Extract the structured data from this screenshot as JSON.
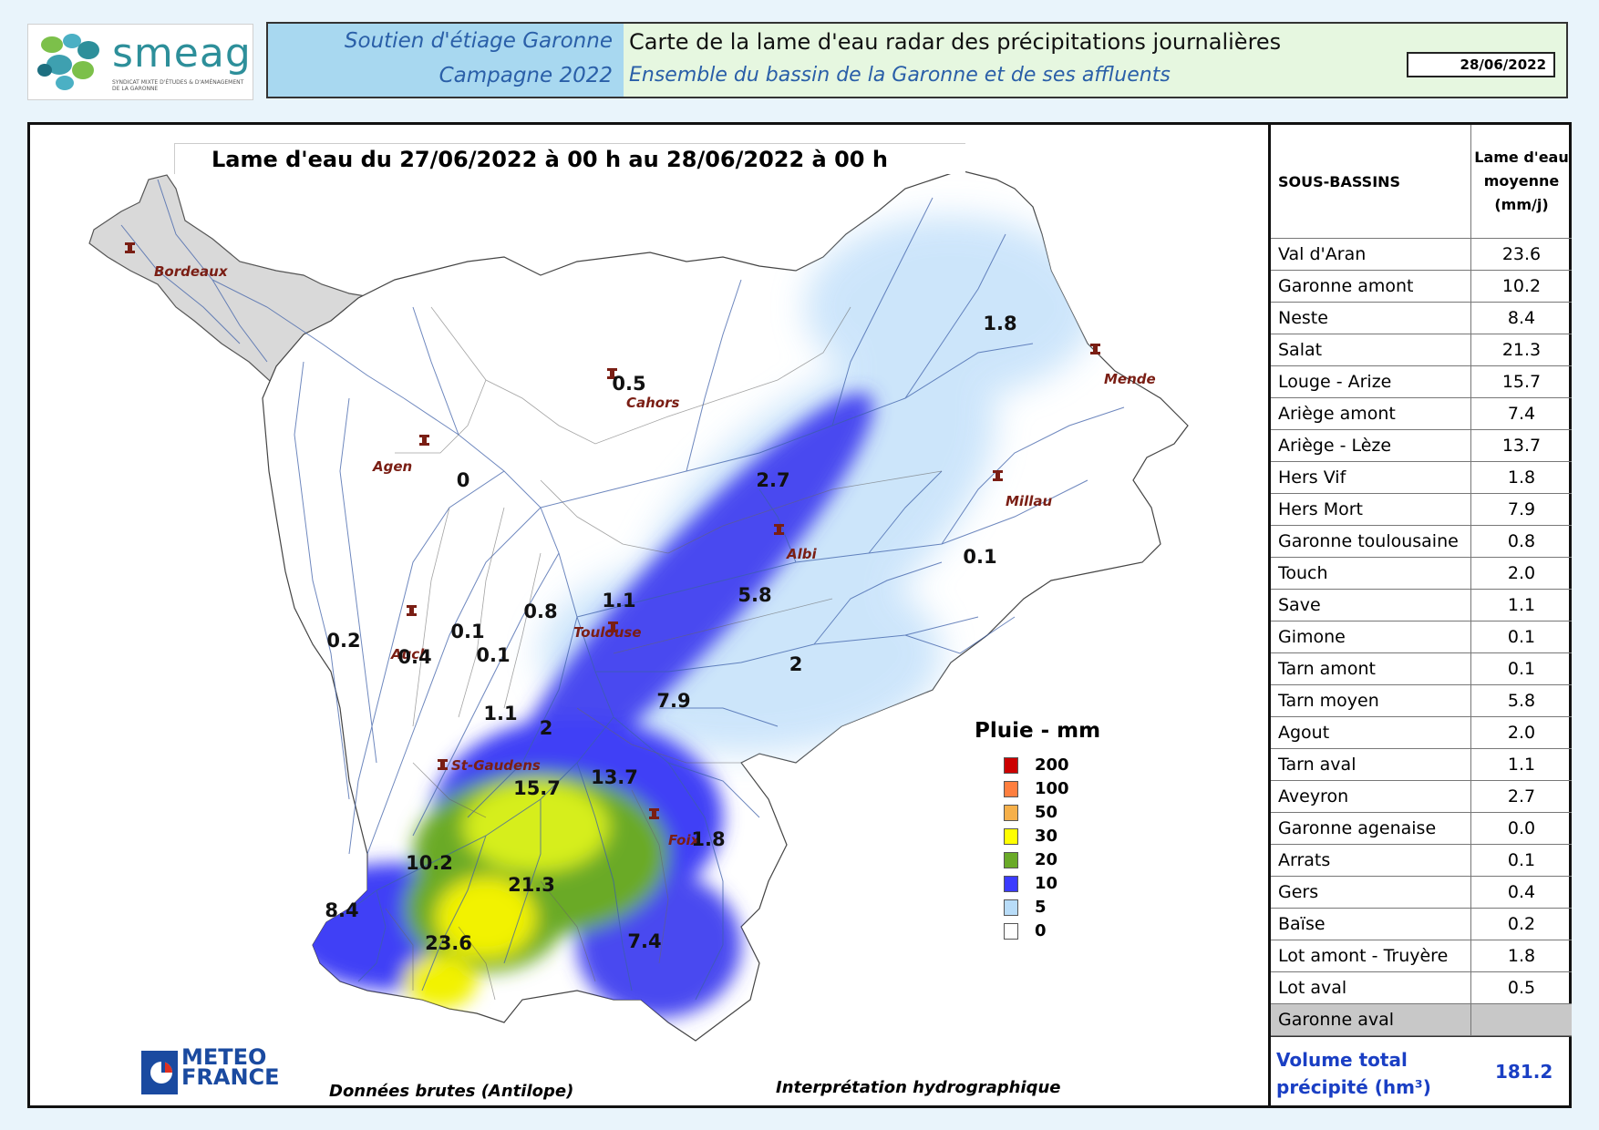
{
  "header": {
    "logo_word": "smeag",
    "logo_sub": "SYNDICAT MIXTE D'ÉTUDES & D'AMÉNAGEMENT DE LA GARONNE",
    "left_line1": "Soutien d'étiage Garonne",
    "left_line2": "Campagne 2022",
    "right_line1": "Carte de la lame d'eau radar des précipitations journalières",
    "right_line2": "Ensemble du bassin de la Garonne et de ses affluents",
    "date": "28/06/2022"
  },
  "map": {
    "title": "Lame d'eau du 27/06/2022 à 00 h au 28/06/2022 à 00 h",
    "cities": [
      {
        "name": "Bordeaux"
      },
      {
        "name": "Cahors"
      },
      {
        "name": "Mende"
      },
      {
        "name": "Agen"
      },
      {
        "name": "Millau"
      },
      {
        "name": "Albi"
      },
      {
        "name": "Toulouse"
      },
      {
        "name": "Auch"
      },
      {
        "name": "St-Gaudens"
      },
      {
        "name": "Foix"
      }
    ],
    "values": [
      "1.8",
      "0.5",
      "2.7",
      "0",
      "0.1",
      "5.8",
      "1.1",
      "0.8",
      "0.1",
      "0.2",
      "0.4",
      "0.1",
      "2",
      "7.9",
      "1.1",
      "2",
      "13.7",
      "15.7",
      "1.8",
      "10.2",
      "21.3",
      "8.4",
      "23.6",
      "7.4"
    ]
  },
  "legend": {
    "title": "Pluie - mm",
    "items": [
      {
        "label": "200",
        "color": "#cc0000"
      },
      {
        "label": "100",
        "color": "#ff7f3f"
      },
      {
        "label": "50",
        "color": "#f6b04a"
      },
      {
        "label": "30",
        "color": "#ffff00"
      },
      {
        "label": "20",
        "color": "#6aaa28"
      },
      {
        "label": "10",
        "color": "#3b3bff"
      },
      {
        "label": "5",
        "color": "#b8dcf8"
      },
      {
        "label": "0",
        "color": "#ffffff"
      }
    ]
  },
  "table": {
    "col1_header": "SOUS-BASSINS",
    "col2_header": [
      "Lame d'eau",
      "moyenne",
      "(mm/j)"
    ],
    "rows": [
      {
        "name": "Val d'Aran",
        "value": "23.6"
      },
      {
        "name": "Garonne amont",
        "value": "10.2"
      },
      {
        "name": "Neste",
        "value": "8.4"
      },
      {
        "name": "Salat",
        "value": "21.3"
      },
      {
        "name": "Louge - Arize",
        "value": "15.7"
      },
      {
        "name": "Ariège amont",
        "value": "7.4"
      },
      {
        "name": "Ariège - Lèze",
        "value": "13.7"
      },
      {
        "name": "Hers Vif",
        "value": "1.8"
      },
      {
        "name": "Hers Mort",
        "value": "7.9"
      },
      {
        "name": "Garonne toulousaine",
        "value": "0.8"
      },
      {
        "name": "Touch",
        "value": "2.0"
      },
      {
        "name": "Save",
        "value": "1.1"
      },
      {
        "name": "Gimone",
        "value": "0.1"
      },
      {
        "name": "Tarn amont",
        "value": "0.1"
      },
      {
        "name": "Tarn moyen",
        "value": "5.8"
      },
      {
        "name": "Agout",
        "value": "2.0"
      },
      {
        "name": "Tarn aval",
        "value": "1.1"
      },
      {
        "name": "Aveyron",
        "value": "2.7"
      },
      {
        "name": "Garonne agenaise",
        "value": "0.0"
      },
      {
        "name": "Arrats",
        "value": "0.1"
      },
      {
        "name": "Gers",
        "value": "0.4"
      },
      {
        "name": "Baïse",
        "value": "0.2"
      },
      {
        "name": "Lot amont - Truyère",
        "value": "1.8"
      },
      {
        "name": "Lot aval",
        "value": "0.5"
      },
      {
        "name": "Garonne aval",
        "value": ""
      }
    ],
    "total_label_line1": "Volume total",
    "total_label_line2": "précipité (hm³)",
    "total_value": "181.2"
  },
  "footer": {
    "logo_line1": "METEO",
    "logo_line2": "FRANCE",
    "source_left": "Données brutes (Antilope)",
    "source_right": "Interprétation hydrographique"
  }
}
